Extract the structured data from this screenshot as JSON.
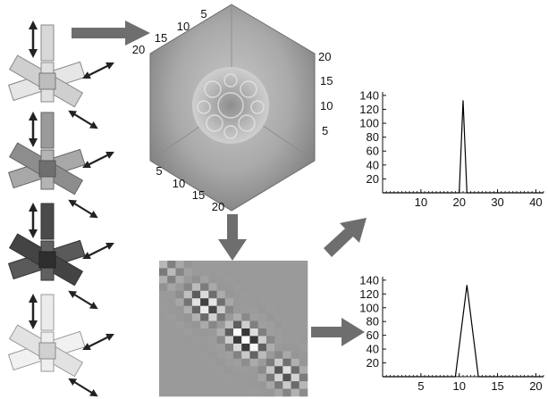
{
  "cube": {
    "top_left_ticks": [
      "5",
      "10",
      "15",
      "20"
    ],
    "right_ticks": [
      "20",
      "15",
      "10",
      "5"
    ],
    "bottom_left_ticks": [
      "5",
      "10",
      "15",
      "20"
    ]
  },
  "charts": {
    "chart_data": [
      {
        "type": "line",
        "x": [
          0,
          20,
          21,
          22,
          42
        ],
        "y": [
          0,
          0,
          133,
          0,
          0
        ],
        "x_ticks": [
          "10",
          "20",
          "30",
          "40"
        ],
        "y_ticks": [
          "20",
          "40",
          "60",
          "80",
          "100",
          "120",
          "140"
        ],
        "xlim": [
          0,
          42
        ],
        "ylim": [
          0,
          145
        ],
        "grid": false
      },
      {
        "type": "line",
        "x": [
          0,
          5,
          9.5,
          11,
          12.5,
          16,
          21
        ],
        "y": [
          0,
          0,
          0,
          133,
          0,
          0,
          0
        ],
        "x_ticks": [
          "5",
          "10",
          "15",
          "20"
        ],
        "y_ticks": [
          "20",
          "40",
          "60",
          "80",
          "100",
          "120",
          "140"
        ],
        "xlim": [
          0,
          21
        ],
        "ylim": [
          0,
          145
        ],
        "grid": false
      }
    ]
  },
  "colors": {
    "arrow": "#6e6e6e",
    "axis": "#111111",
    "cube_edge": "#6a6a6a"
  }
}
